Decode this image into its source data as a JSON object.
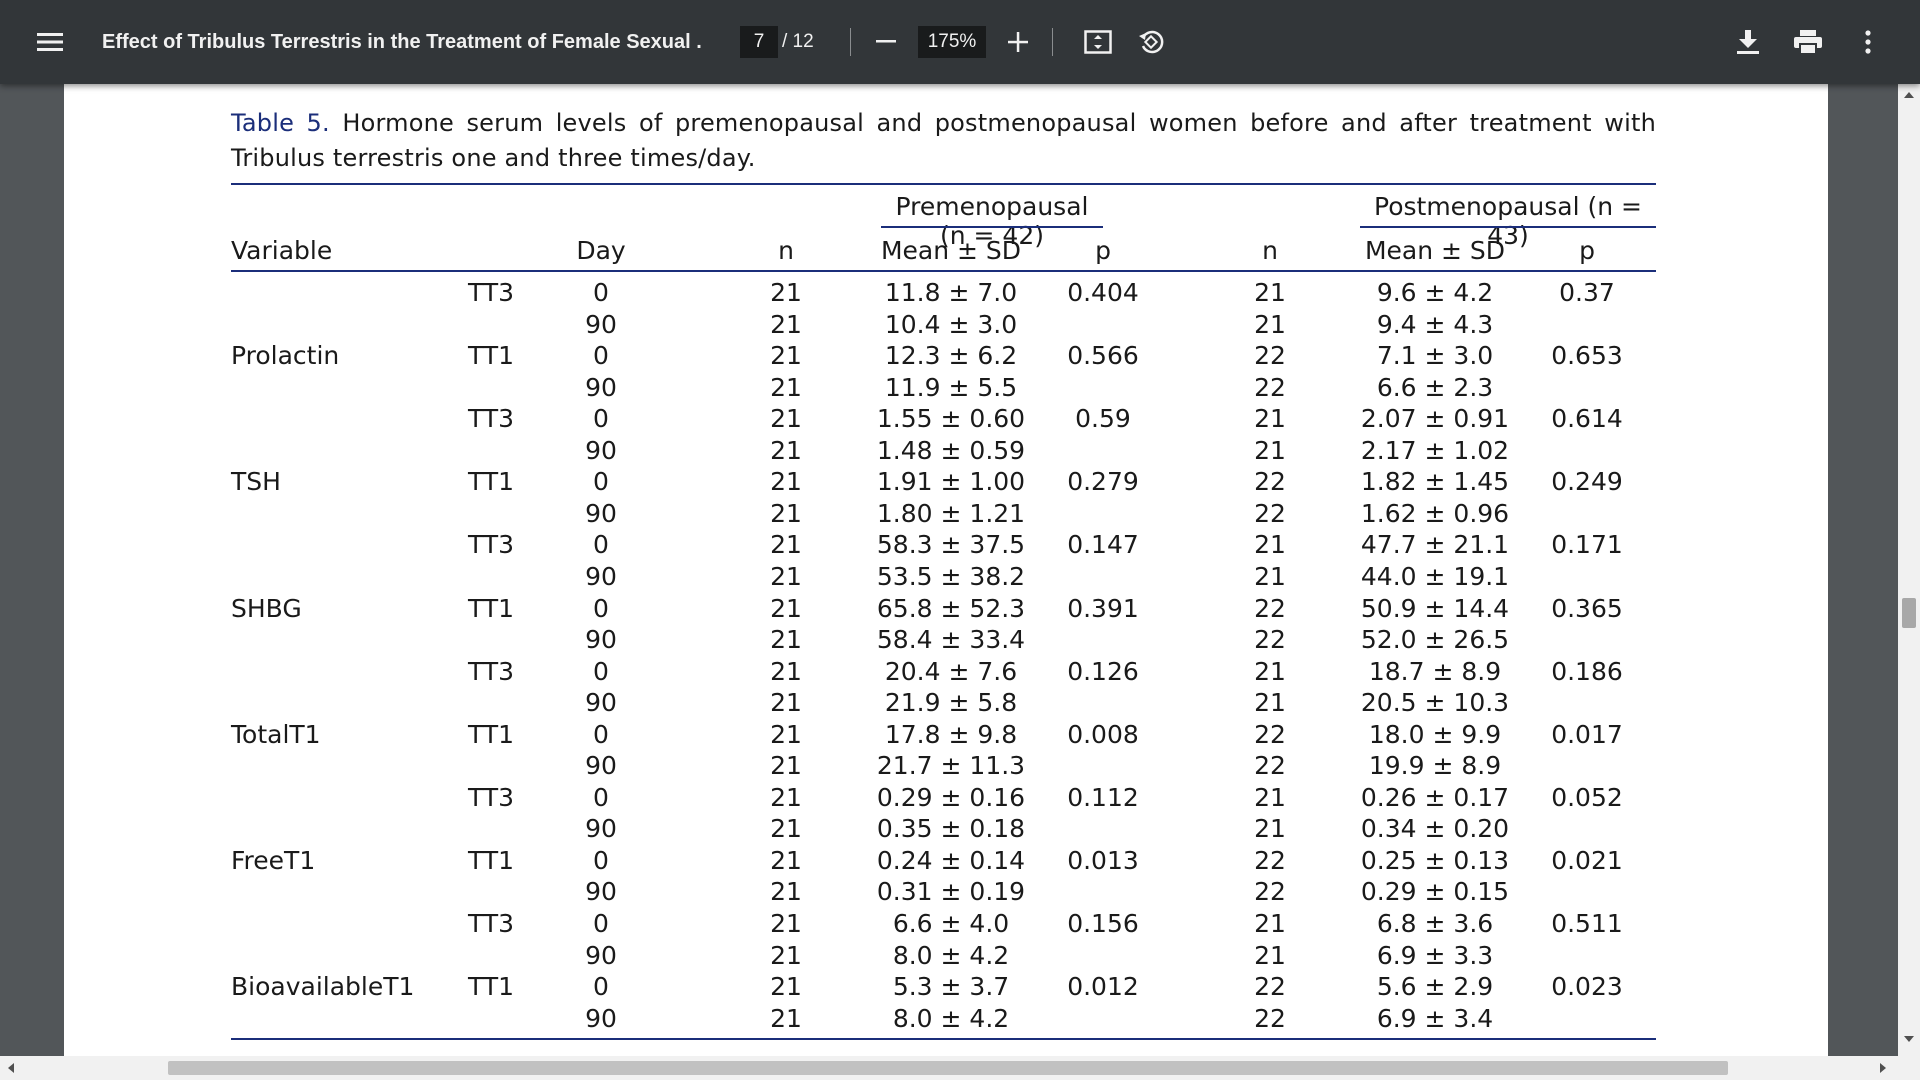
{
  "toolbar": {
    "title": "Effect of Tribulus Terrestris in the Treatment of Female Sexual ...",
    "page_current": "7",
    "page_total": "/ 12",
    "zoom": "175%"
  },
  "table": {
    "caption_label": "Table 5.",
    "caption_text": " Hormone serum levels of premenopausal and postmenopausal women before and after treatment with Tribulus terrestris one and three times/day.",
    "group_pre": "Premenopausal (n = 42)",
    "group_post": "Postmenopausal (n = 43)",
    "headers": {
      "variable": "Variable",
      "day": "Day",
      "n_pre": "n",
      "mean_pre": "Mean ± SD",
      "p_pre": "p",
      "n_post": "n",
      "mean_post": "Mean ± SD",
      "p_post": "p"
    },
    "rows": [
      {
        "variable": "",
        "group": "TT3",
        "day": "0",
        "n_pre": "21",
        "mean_pre": "11.8 ± 7.0",
        "p_pre": "0.404",
        "n_post": "21",
        "mean_post": "9.6 ± 4.2",
        "p_post": "0.37"
      },
      {
        "variable": "",
        "group": "",
        "day": "90",
        "n_pre": "21",
        "mean_pre": "10.4 ± 3.0",
        "p_pre": "",
        "n_post": "21",
        "mean_post": "9.4 ± 4.3",
        "p_post": ""
      },
      {
        "variable": "Prolactin",
        "group": "TT1",
        "day": "0",
        "n_pre": "21",
        "mean_pre": "12.3 ± 6.2",
        "p_pre": "0.566",
        "n_post": "22",
        "mean_post": "7.1 ± 3.0",
        "p_post": "0.653"
      },
      {
        "variable": "",
        "group": "",
        "day": "90",
        "n_pre": "21",
        "mean_pre": "11.9 ± 5.5",
        "p_pre": "",
        "n_post": "22",
        "mean_post": "6.6 ± 2.3",
        "p_post": ""
      },
      {
        "variable": "",
        "group": "TT3",
        "day": "0",
        "n_pre": "21",
        "mean_pre": "1.55 ± 0.60",
        "p_pre": "0.59",
        "n_post": "21",
        "mean_post": "2.07 ± 0.91",
        "p_post": "0.614"
      },
      {
        "variable": "",
        "group": "",
        "day": "90",
        "n_pre": "21",
        "mean_pre": "1.48 ± 0.59",
        "p_pre": "",
        "n_post": "21",
        "mean_post": "2.17 ± 1.02",
        "p_post": ""
      },
      {
        "variable": "TSH",
        "group": "TT1",
        "day": "0",
        "n_pre": "21",
        "mean_pre": "1.91 ± 1.00",
        "p_pre": "0.279",
        "n_post": "22",
        "mean_post": "1.82 ± 1.45",
        "p_post": "0.249"
      },
      {
        "variable": "",
        "group": "",
        "day": "90",
        "n_pre": "21",
        "mean_pre": "1.80 ± 1.21",
        "p_pre": "",
        "n_post": "22",
        "mean_post": "1.62 ± 0.96",
        "p_post": ""
      },
      {
        "variable": "",
        "group": "TT3",
        "day": "0",
        "n_pre": "21",
        "mean_pre": "58.3 ± 37.5",
        "p_pre": "0.147",
        "n_post": "21",
        "mean_post": "47.7 ± 21.1",
        "p_post": "0.171"
      },
      {
        "variable": "",
        "group": "",
        "day": "90",
        "n_pre": "21",
        "mean_pre": "53.5 ± 38.2",
        "p_pre": "",
        "n_post": "21",
        "mean_post": "44.0 ± 19.1",
        "p_post": ""
      },
      {
        "variable": "SHBG",
        "group": "TT1",
        "day": "0",
        "n_pre": "21",
        "mean_pre": "65.8 ± 52.3",
        "p_pre": "0.391",
        "n_post": "22",
        "mean_post": "50.9 ± 14.4",
        "p_post": "0.365"
      },
      {
        "variable": "",
        "group": "",
        "day": "90",
        "n_pre": "21",
        "mean_pre": "58.4 ± 33.4",
        "p_pre": "",
        "n_post": "22",
        "mean_post": "52.0 ± 26.5",
        "p_post": ""
      },
      {
        "variable": "",
        "group": "TT3",
        "day": "0",
        "n_pre": "21",
        "mean_pre": "20.4 ± 7.6",
        "p_pre": "0.126",
        "n_post": "21",
        "mean_post": "18.7 ± 8.9",
        "p_post": "0.186"
      },
      {
        "variable": "",
        "group": "",
        "day": "90",
        "n_pre": "21",
        "mean_pre": "21.9 ± 5.8",
        "p_pre": "",
        "n_post": "21",
        "mean_post": "20.5 ± 10.3",
        "p_post": ""
      },
      {
        "variable": "TotalT1",
        "group": "TT1",
        "day": "0",
        "n_pre": "21",
        "mean_pre": "17.8 ± 9.8",
        "p_pre": "0.008",
        "n_post": "22",
        "mean_post": "18.0 ± 9.9",
        "p_post": "0.017"
      },
      {
        "variable": "",
        "group": "",
        "day": "90",
        "n_pre": "21",
        "mean_pre": "21.7 ± 11.3",
        "p_pre": "",
        "n_post": "22",
        "mean_post": "19.9 ± 8.9",
        "p_post": ""
      },
      {
        "variable": "",
        "group": "TT3",
        "day": "0",
        "n_pre": "21",
        "mean_pre": "0.29 ± 0.16",
        "p_pre": "0.112",
        "n_post": "21",
        "mean_post": "0.26 ± 0.17",
        "p_post": "0.052"
      },
      {
        "variable": "",
        "group": "",
        "day": "90",
        "n_pre": "21",
        "mean_pre": "0.35 ± 0.18",
        "p_pre": "",
        "n_post": "21",
        "mean_post": "0.34 ± 0.20",
        "p_post": ""
      },
      {
        "variable": "FreeT1",
        "group": "TT1",
        "day": "0",
        "n_pre": "21",
        "mean_pre": "0.24 ± 0.14",
        "p_pre": "0.013",
        "n_post": "22",
        "mean_post": "0.25 ± 0.13",
        "p_post": "0.021"
      },
      {
        "variable": "",
        "group": "",
        "day": "90",
        "n_pre": "21",
        "mean_pre": "0.31 ± 0.19",
        "p_pre": "",
        "n_post": "22",
        "mean_post": "0.29 ± 0.15",
        "p_post": ""
      },
      {
        "variable": "",
        "group": "TT3",
        "day": "0",
        "n_pre": "21",
        "mean_pre": "6.6 ± 4.0",
        "p_pre": "0.156",
        "n_post": "21",
        "mean_post": "6.8 ± 3.6",
        "p_post": "0.511"
      },
      {
        "variable": "",
        "group": "",
        "day": "90",
        "n_pre": "21",
        "mean_pre": "8.0 ± 4.2",
        "p_pre": "",
        "n_post": "21",
        "mean_post": "6.9 ± 3.3",
        "p_post": ""
      },
      {
        "variable": "BioavailableT1",
        "group": "TT1",
        "day": "0",
        "n_pre": "21",
        "mean_pre": "5.3 ± 3.7",
        "p_pre": "0.012",
        "n_post": "22",
        "mean_post": "5.6 ± 2.9",
        "p_post": "0.023"
      },
      {
        "variable": "",
        "group": "",
        "day": "90",
        "n_pre": "21",
        "mean_pre": "8.0 ± 4.2",
        "p_pre": "",
        "n_post": "22",
        "mean_post": "6.9 ± 3.4",
        "p_post": ""
      }
    ]
  }
}
